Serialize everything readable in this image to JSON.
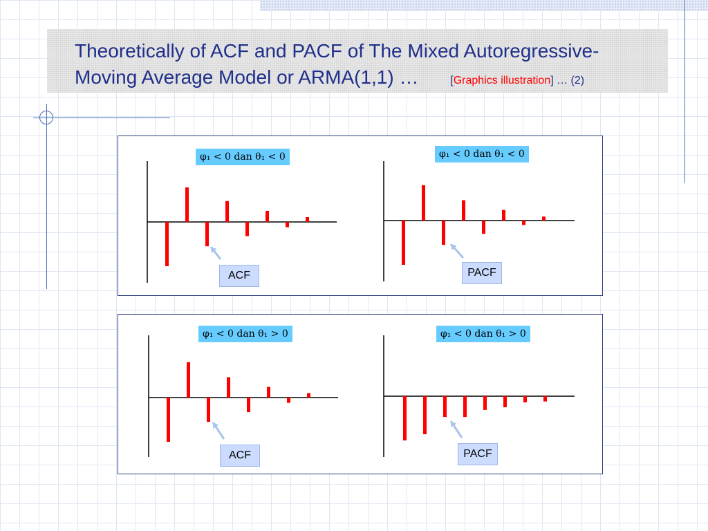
{
  "slide": {
    "title_line1": "Theoretically of ACF and PACF of The Mixed Autoregressive-",
    "title_line2": "Moving Average Model or ARMA(1,1) …",
    "note_open": "[",
    "note_highlight": "Graphics illustration",
    "note_close": "] … (2)"
  },
  "colors": {
    "bar": "#ff0000",
    "title_text": "#1f2f8a",
    "label_bg": "#66ccff",
    "callout_bg": "#ccdcff",
    "arrow": "#a8c4ea"
  },
  "chart_data": [
    {
      "type": "bar",
      "condition": "φ₁ < 0 dan θ₁ < 0",
      "callout": "ACF",
      "series": [
        {
          "values": [
            -1.0,
            0.78,
            -0.55,
            0.47,
            -0.32,
            0.25,
            -0.12,
            0.11
          ]
        }
      ],
      "ylim": [
        -1.0,
        1.0
      ]
    },
    {
      "type": "bar",
      "condition": "φ₁ < 0 dan θ₁ < 0",
      "callout": "PACF",
      "series": [
        {
          "values": [
            -1.0,
            0.8,
            -0.55,
            0.46,
            -0.3,
            0.24,
            -0.1,
            0.09
          ]
        }
      ],
      "ylim": [
        -1.0,
        1.0
      ]
    },
    {
      "type": "bar",
      "condition": "φ₁ < 0 dan θ₁ > 0",
      "callout": "ACF",
      "series": [
        {
          "values": [
            -1.0,
            0.8,
            -0.55,
            0.46,
            -0.33,
            0.24,
            -0.12,
            0.1
          ]
        }
      ],
      "ylim": [
        -1.0,
        1.0
      ]
    },
    {
      "type": "bar",
      "condition": "φ₁ < 0 dan θ₁ > 0",
      "callout": "PACF",
      "series": [
        {
          "values": [
            -1.0,
            -0.86,
            -0.47,
            -0.47,
            -0.31,
            -0.25,
            -0.14,
            -0.12
          ]
        }
      ],
      "ylim": [
        -1.0,
        1.0
      ]
    }
  ]
}
